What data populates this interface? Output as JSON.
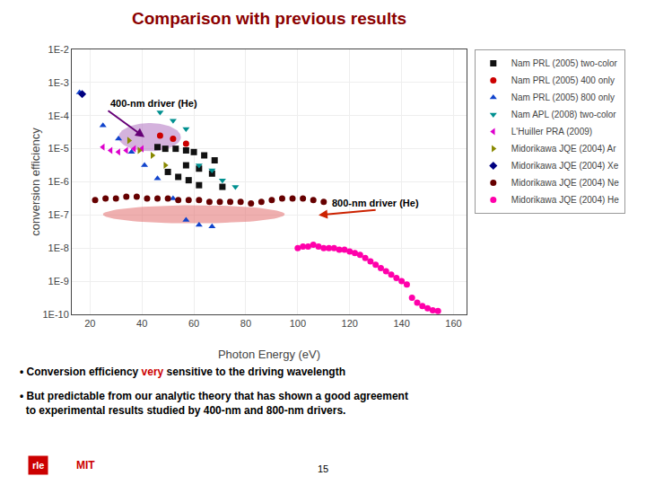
{
  "chart_data": {
    "type": "scatter",
    "title": "Comparison with previous results",
    "title_color": "#8B0000",
    "x_label": "Photon Energy (eV)",
    "y_label": "conversion efficiency",
    "log": "y",
    "grid": true,
    "legend": "right",
    "xlim": [
      13,
      165
    ],
    "xticks": [
      20,
      40,
      60,
      80,
      100,
      120,
      140,
      160
    ],
    "ylim": [
      1e-10,
      0.01
    ],
    "yticks": [
      {
        "value": 1e-10,
        "label": "1E-10"
      },
      {
        "value": 1e-09,
        "label": "1E-9"
      },
      {
        "value": 1e-08,
        "label": "1E-8"
      },
      {
        "value": 1e-07,
        "label": "1E-7"
      },
      {
        "value": 1e-06,
        "label": "1E-6"
      },
      {
        "value": 1e-05,
        "label": "1E-5"
      },
      {
        "value": 0.0001,
        "label": "1E-4"
      },
      {
        "value": 0.001,
        "label": "1E-3"
      },
      {
        "value": 0.01,
        "label": "1E-2"
      }
    ],
    "series": [
      {
        "name": "Nam PRL (2005) two-color",
        "color": "#111111",
        "marker": "square",
        "x": [
          46,
          49,
          53,
          57,
          60,
          64,
          68,
          50,
          54,
          58,
          62,
          67,
          71,
          57,
          62
        ],
        "values": [
          1.122018e-05,
          1e-05,
          1e-05,
          8.912509e-06,
          7.943282e-06,
          6.309573e-06,
          4.466836e-06,
          1.995262e-06,
          1.412538e-06,
          1.122018e-06,
          7.943282e-07,
          1.778279e-06,
          7.079458e-07,
          3.162278e-06,
          2.511886e-06
        ]
      },
      {
        "name": "Nam PRL (2005) 400 only",
        "color": "#cc0000",
        "marker": "circle",
        "x": [
          47,
          52,
          57
        ],
        "values": [
          2.511886e-05,
          1.995262e-05,
          1.412538e-05
        ]
      },
      {
        "name": "Nam PRL (2005) 800 only",
        "color": "#1144cc",
        "marker": "triangle-up",
        "x": [
          16,
          25,
          31,
          36,
          41,
          46,
          52,
          57,
          62,
          67
        ],
        "values": [
          0.0005011872,
          5.011872e-05,
          1.995262e-05,
          7.943282e-06,
          3.162278e-06,
          1.258925e-06,
          3.162278e-07,
          7.079458e-08,
          5.011872e-08,
          4.466836e-08
        ]
      },
      {
        "name": "Nam APL (2008) two-color",
        "color": "#009090",
        "marker": "triangle-down",
        "x": [
          47,
          52,
          57,
          62,
          67,
          71,
          76
        ],
        "values": [
          0.0001258925,
          7.079458e-05,
          3.981072e-05,
          3.162278e-06,
          2.238721e-06,
          1.122018e-06,
          7.079458e-07
        ]
      },
      {
        "name": "L'Huiller PRA (2009)",
        "color": "#dd00cc",
        "marker": "triangle-left",
        "x": [
          25,
          28,
          31,
          34,
          37,
          40
        ],
        "values": [
          1.122018e-05,
          8.912509e-06,
          7.943282e-06,
          8.912509e-06,
          1e-05,
          1e-05
        ]
      },
      {
        "name": "Midorikawa JQE (2004) Ar",
        "color": "#888800",
        "marker": "triangle-right",
        "x": [
          35,
          39,
          44,
          49
        ],
        "values": [
          1.778279e-05,
          8.912509e-06,
          6.309573e-06,
          3.162278e-06
        ]
      },
      {
        "name": "Midorikawa JQE (2004) Xe",
        "color": "#000080",
        "marker": "diamond",
        "x": [
          17
        ],
        "values": [
          0.0004466836
        ]
      },
      {
        "name": "Midorikawa JQE (2004) Ne",
        "color": "#660000",
        "marker": "circle",
        "x": [
          22,
          26,
          30,
          34,
          38,
          42,
          46,
          50,
          54,
          58,
          62,
          66,
          70,
          74,
          78,
          82,
          86,
          90,
          94,
          98,
          102,
          106,
          110
        ],
        "values": [
          2.818383e-07,
          3.162278e-07,
          3.162278e-07,
          3.548134e-07,
          3.548134e-07,
          3.162278e-07,
          3.162278e-07,
          3.162278e-07,
          2.818383e-07,
          2.818383e-07,
          2.818383e-07,
          2.511886e-07,
          2.511886e-07,
          2.511886e-07,
          2.511886e-07,
          2.238721e-07,
          2.511886e-07,
          2.818383e-07,
          3.162278e-07,
          3.162278e-07,
          3.162278e-07,
          2.818383e-07,
          2.511886e-07
        ]
      },
      {
        "name": "Midorikawa JQE (2004) He",
        "color": "#ff00aa",
        "marker": "circle",
        "x": [
          100,
          102,
          104,
          106,
          108,
          110,
          112,
          114,
          116,
          118,
          120,
          122,
          124,
          126,
          128,
          130,
          132,
          134,
          136,
          138,
          140,
          142,
          144,
          146,
          148,
          150,
          152,
          154
        ],
        "values": [
          1e-08,
          1.122018e-08,
          1.122018e-08,
          1.258925e-08,
          1.122018e-08,
          1e-08,
          1e-08,
          1e-08,
          8.912509e-09,
          8.912509e-09,
          7.943282e-09,
          7.079458e-09,
          6.309573e-09,
          5.011872e-09,
          3.981072e-09,
          3.162278e-09,
          2.511886e-09,
          1.995262e-09,
          1.584893e-09,
          1.258925e-09,
          1e-09,
          7.943282e-10,
          3.162278e-10,
          2.238721e-10,
          1.778279e-10,
          1.513561e-10,
          1.318257e-10,
          1.258925e-10
        ]
      }
    ],
    "regions": [
      {
        "x_range": [
          31,
          55
        ],
        "y_range": [
          8.413951e-06,
          5.956621e-05
        ],
        "color": "#aa66bb"
      },
      {
        "x_range": [
          25,
          95
        ],
        "y_range": [
          5.559043e-08,
          1.972423e-07
        ],
        "color": "#e06060"
      }
    ],
    "annotations": [
      {
        "text": "400-nm driver (He)",
        "x": 27,
        "y": 0.0001412538,
        "arrow_x": 41,
        "arrow_y": 2.238721e-05,
        "color": "#660077"
      },
      {
        "text": "800-nm driver (He)",
        "x": 130,
        "y": 1.412538e-07,
        "arrow_x": 108,
        "arrow_y": 1e-07,
        "color": "#cc2200"
      }
    ],
    "notes": [
      {
        "lines": [
          [
            {
              "text": "• Conversion efficiency "
            },
            {
              "text": "very",
              "color": "#cc0000"
            },
            {
              "text": " sensitive to the driving wavelength"
            }
          ]
        ]
      },
      {
        "lines": [
          [
            {
              "text": "• But predictable from our analytic theory that has shown a good agreement"
            }
          ],
          [
            {
              "text": "  to experimental results studied by 400-nm and 800-nm drivers."
            }
          ]
        ]
      }
    ],
    "page_number": "15",
    "logos": [
      {
        "text": "rle",
        "background": "#cc0000"
      },
      {
        "text": "MIT",
        "color": "#cc0000"
      }
    ]
  }
}
